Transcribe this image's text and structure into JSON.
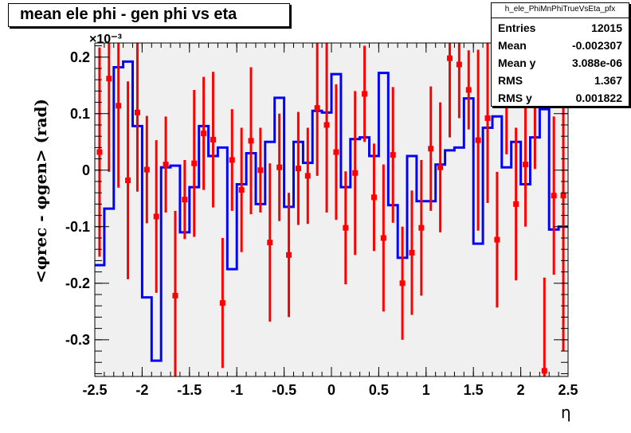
{
  "title": "mean ele phi - gen phi vs eta",
  "stats": {
    "name": "h_ele_PhiMnPhiTrueVsEta_pfx",
    "rows": [
      {
        "label": "Entries",
        "value": "12015"
      },
      {
        "label": "Mean",
        "value": "-0.002307"
      },
      {
        "label": "Mean y",
        "value": "3.088e-06"
      },
      {
        "label": "RMS",
        "value": "1.367"
      },
      {
        "label": "RMS y",
        "value": "0.001822"
      }
    ]
  },
  "chart_data": {
    "type": "line",
    "title": "mean ele phi - gen phi vs eta",
    "xlabel": "η",
    "ylabel": "<φrec - φgen> (rad)",
    "y_exponent_label": "×10⁻³",
    "xlim": [
      -2.5,
      2.5
    ],
    "ylim": [
      -0.365,
      0.225
    ],
    "x_ticks": [
      -2.5,
      -2,
      -1.5,
      -1,
      -0.5,
      0,
      0.5,
      1,
      1.5,
      2,
      2.5
    ],
    "x_tick_labels": [
      "-2.5",
      "-2",
      "-1.5",
      "-1",
      "-0.5",
      "0",
      "0.5",
      "1",
      "1.5",
      "2",
      "2.5"
    ],
    "y_ticks": [
      -0.3,
      -0.2,
      -0.1,
      0,
      0.1,
      0.2
    ],
    "y_tick_labels": [
      "-0.3",
      "-0.2",
      "-0.1",
      "0",
      "0.1",
      "0.2"
    ],
    "grid": false,
    "background": "#f0f0f0",
    "series": [
      {
        "style": "step",
        "color": "#0000ff",
        "bin_edges": [
          -2.5,
          -2.4,
          -2.3,
          -2.2,
          -2.1,
          -2.0,
          -1.9,
          -1.8,
          -1.7,
          -1.6,
          -1.5,
          -1.4,
          -1.3,
          -1.2,
          -1.1,
          -1.0,
          -0.9,
          -0.8,
          -0.7,
          -0.6,
          -0.5,
          -0.4,
          -0.3,
          -0.2,
          -0.1,
          0.0,
          0.1,
          0.2,
          0.3,
          0.4,
          0.5,
          0.6,
          0.7,
          0.8,
          0.9,
          1.0,
          1.1,
          1.2,
          1.3,
          1.4,
          1.5,
          1.6,
          1.7,
          1.8,
          1.9,
          2.0,
          2.1,
          2.2,
          2.3,
          2.4,
          2.5
        ],
        "values": [
          -0.168,
          -0.068,
          0.182,
          0.192,
          0.078,
          -0.225,
          -0.337,
          0.005,
          0.008,
          -0.11,
          -0.03,
          0.078,
          0.025,
          0.04,
          -0.175,
          -0.025,
          0.03,
          -0.06,
          0.05,
          0.128,
          -0.065,
          0.05,
          0.013,
          0.105,
          0.102,
          0.17,
          -0.03,
          0.055,
          0.058,
          0.025,
          0.172,
          -0.062,
          -0.155,
          0.025,
          -0.055,
          -0.055,
          0.01,
          0.035,
          0.04,
          0.127,
          -0.13,
          0.075,
          0.095,
          0.005,
          0.05,
          -0.025,
          0.058,
          0.108,
          -0.105,
          -0.1
        ]
      },
      {
        "style": "errorbar",
        "color": "#ff0000",
        "x": [
          -2.45,
          -2.35,
          -2.25,
          -2.15,
          -2.05,
          -1.95,
          -1.85,
          -1.75,
          -1.65,
          -1.55,
          -1.45,
          -1.35,
          -1.25,
          -1.15,
          -1.05,
          -0.95,
          -0.85,
          -0.75,
          -0.65,
          -0.55,
          -0.45,
          -0.35,
          -0.25,
          -0.15,
          -0.05,
          0.05,
          0.15,
          0.25,
          0.35,
          0.45,
          0.55,
          0.65,
          0.75,
          0.85,
          0.95,
          1.05,
          1.15,
          1.25,
          1.35,
          1.45,
          1.55,
          1.65,
          1.75,
          1.85,
          1.95,
          2.05,
          2.15,
          2.25,
          2.35,
          2.45
        ],
        "y": [
          0.032,
          0.162,
          0.114,
          -0.018,
          0.102,
          0.001,
          -0.082,
          0.01,
          -0.222,
          -0.052,
          0.012,
          0.065,
          0.054,
          -0.235,
          0.018,
          -0.035,
          0.052,
          0.0,
          -0.128,
          0.005,
          -0.15,
          0.003,
          -0.01,
          0.11,
          0.08,
          0.032,
          -0.102,
          -0.005,
          0.135,
          -0.048,
          -0.12,
          0.027,
          -0.2,
          -0.146,
          -0.102,
          0.038,
          0.005,
          0.198,
          0.187,
          0.142,
          0.053,
          0.092,
          -0.123,
          0.128,
          -0.06,
          0.01,
          0.132,
          -0.355,
          -0.045,
          -0.045
        ],
        "err": [
          0.185,
          0.165,
          0.145,
          0.175,
          0.14,
          0.095,
          0.135,
          0.085,
          0.15,
          0.07,
          0.13,
          0.1,
          0.12,
          0.115,
          0.09,
          0.11,
          0.13,
          0.075,
          0.14,
          0.095,
          0.11,
          0.1,
          0.085,
          0.12,
          0.155,
          0.12,
          0.1,
          0.145,
          0.085,
          0.095,
          0.13,
          0.12,
          0.1,
          0.11,
          0.12,
          0.11,
          0.115,
          0.14,
          0.095,
          0.07,
          0.16,
          0.15,
          0.12,
          0.1,
          0.135,
          0.11,
          0.13,
          0.165,
          0.14,
          0.275
        ]
      }
    ]
  }
}
